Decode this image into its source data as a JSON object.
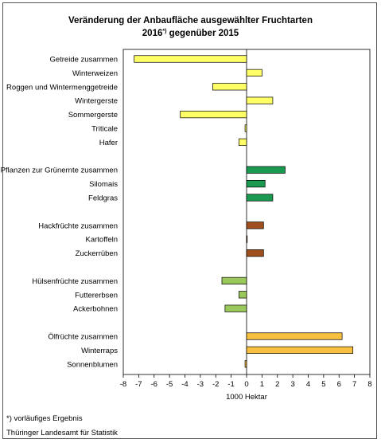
{
  "chart_data": {
    "type": "bar",
    "orientation": "horizontal",
    "title_line1": "Veränderung der Anbaufläche ausgewählter Fruchtarten",
    "title_line2_pre": "2016",
    "title_line2_sup": "*)",
    "title_line2_post": " gegenüber 2015",
    "xlabel": "1000 Hektar",
    "xlim": [
      -8,
      8
    ],
    "xticks": [
      "-8",
      "-7",
      "-6",
      "-5",
      "-4",
      "-3",
      "-2",
      "-1",
      "0",
      "1",
      "2",
      "3",
      "4",
      "5",
      "6",
      "7",
      "8"
    ],
    "rows": [
      {
        "label": "Getreide zusammen",
        "value": -7.3,
        "color": "#ffff66"
      },
      {
        "label": "Winterweizen",
        "value": 1.0,
        "color": "#ffff66"
      },
      {
        "label": "Roggen und Wintermenggetreide",
        "value": -2.2,
        "color": "#ffff66"
      },
      {
        "label": "Wintergerste",
        "value": 1.7,
        "color": "#ffff66"
      },
      {
        "label": "Sommergerste",
        "value": -4.3,
        "color": "#ffff66"
      },
      {
        "label": "Triticale",
        "value": -0.1,
        "color": "#ffff66"
      },
      {
        "label": "Hafer",
        "value": -0.5,
        "color": "#ffff66"
      },
      {
        "label": "",
        "value": null,
        "color": ""
      },
      {
        "label": "Pflanzen zur Grünernte zusammen",
        "value": 2.5,
        "color": "#1a9a50"
      },
      {
        "label": "Silomais",
        "value": 1.2,
        "color": "#1a9a50"
      },
      {
        "label": "Feldgras",
        "value": 1.7,
        "color": "#1a9a50"
      },
      {
        "label": "",
        "value": null,
        "color": ""
      },
      {
        "label": "Hackfrüchte zusammen",
        "value": 1.1,
        "color": "#a0501e"
      },
      {
        "label": "Kartoffeln",
        "value": 0.0,
        "color": "#a0501e"
      },
      {
        "label": "Zuckerrüben",
        "value": 1.1,
        "color": "#a0501e"
      },
      {
        "label": "",
        "value": null,
        "color": ""
      },
      {
        "label": "Hülsenfrüchte zusammen",
        "value": -1.6,
        "color": "#9bc85a"
      },
      {
        "label": "Futtererbsen",
        "value": -0.5,
        "color": "#9bc85a"
      },
      {
        "label": "Ackerbohnen",
        "value": -1.4,
        "color": "#9bc85a"
      },
      {
        "label": "",
        "value": null,
        "color": ""
      },
      {
        "label": "Ölfrüchte zusammen",
        "value": 6.2,
        "color": "#f8c040"
      },
      {
        "label": "Winterraps",
        "value": 6.9,
        "color": "#f8c040"
      },
      {
        "label": "Sonnenblumen",
        "value": -0.1,
        "color": "#f8c040"
      }
    ]
  },
  "footnote": "*) vorläufiges Ergebnis",
  "source": "Thüringer Landesamt für Statistik"
}
